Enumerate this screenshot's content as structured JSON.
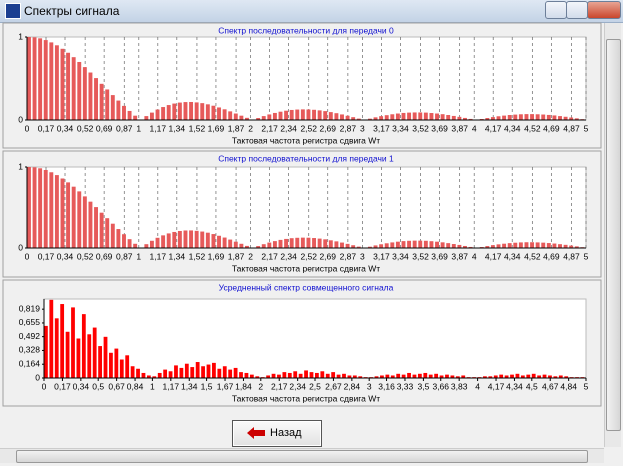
{
  "window": {
    "title": "Спектры сигнала",
    "button": "Назад"
  },
  "chart_data": [
    {
      "type": "bar",
      "title": "Спектр  последовательности для передачи 0",
      "xlabel": "Тактовая частота регистра сдвига Wт",
      "color": "#e65a5a",
      "grid": true,
      "xlim": [
        0,
        5
      ],
      "ylim": [
        0,
        1
      ],
      "yticks": [
        0,
        1
      ],
      "xticks": [
        0,
        {
          "value": 0.17,
          "label": "0,17"
        },
        {
          "value": 0.34,
          "label": "0,34"
        },
        {
          "value": 0.52,
          "label": "0,52"
        },
        {
          "value": 0.69,
          "label": "0,69"
        },
        {
          "value": 0.87,
          "label": "0,87"
        },
        1,
        {
          "value": 1.17,
          "label": "1,17"
        },
        {
          "value": 1.34,
          "label": "1,34"
        },
        {
          "value": 1.52,
          "label": "1,52"
        },
        {
          "value": 1.69,
          "label": "1,69"
        },
        {
          "value": 1.87,
          "label": "1,87"
        },
        2,
        {
          "value": 2.17,
          "label": "2,17"
        },
        {
          "value": 2.34,
          "label": "2,34"
        },
        {
          "value": 2.52,
          "label": "2,52"
        },
        {
          "value": 2.69,
          "label": "2,69"
        },
        {
          "value": 2.87,
          "label": "2,87"
        },
        3,
        {
          "value": 3.17,
          "label": "3,17"
        },
        {
          "value": 3.34,
          "label": "3,34"
        },
        {
          "value": 3.52,
          "label": "3,52"
        },
        {
          "value": 3.69,
          "label": "3,69"
        },
        {
          "value": 3.87,
          "label": "3,87"
        },
        4,
        {
          "value": 4.17,
          "label": "4,17"
        },
        {
          "value": 4.34,
          "label": "4,34"
        },
        {
          "value": 4.52,
          "label": "4,52"
        },
        {
          "value": 4.69,
          "label": "4,69"
        },
        {
          "value": 4.87,
          "label": "4,87"
        },
        5
      ],
      "x": [
        0,
        0.05,
        0.1,
        0.15,
        0.2,
        0.25,
        0.3,
        0.35,
        0.4,
        0.45,
        0.5,
        0.55,
        0.6,
        0.65,
        0.7,
        0.75,
        0.8,
        0.85,
        0.9,
        0.95,
        1,
        1.05,
        1.1,
        1.15,
        1.2,
        1.25,
        1.3,
        1.35,
        1.4,
        1.45,
        1.5,
        1.55,
        1.6,
        1.65,
        1.7,
        1.75,
        1.8,
        1.85,
        1.9,
        1.95,
        2,
        2.05,
        2.1,
        2.15,
        2.2,
        2.25,
        2.3,
        2.35,
        2.4,
        2.45,
        2.5,
        2.55,
        2.6,
        2.65,
        2.7,
        2.75,
        2.8,
        2.85,
        2.9,
        2.95,
        3,
        3.05,
        3.1,
        3.15,
        3.2,
        3.25,
        3.3,
        3.35,
        3.4,
        3.45,
        3.5,
        3.55,
        3.6,
        3.65,
        3.7,
        3.75,
        3.8,
        3.85,
        3.9,
        3.95,
        4,
        4.05,
        4.1,
        4.15,
        4.2,
        4.25,
        4.3,
        4.35,
        4.4,
        4.45,
        4.5,
        4.55,
        4.6,
        4.65,
        4.7,
        4.75,
        4.8,
        4.85,
        4.9,
        4.95
      ],
      "values": [
        1,
        0.996,
        0.984,
        0.963,
        0.935,
        0.9,
        0.858,
        0.81,
        0.757,
        0.699,
        0.637,
        0.572,
        0.505,
        0.436,
        0.368,
        0.3,
        0.234,
        0.17,
        0.109,
        0.052,
        0,
        0.047,
        0.089,
        0.126,
        0.156,
        0.18,
        0.198,
        0.21,
        0.216,
        0.217,
        0.212,
        0.203,
        0.189,
        0.172,
        0.151,
        0.129,
        0.104,
        0.078,
        0.052,
        0.026,
        0,
        0.024,
        0.047,
        0.067,
        0.085,
        0.1,
        0.112,
        0.121,
        0.126,
        0.128,
        0.127,
        0.123,
        0.116,
        0.107,
        0.095,
        0.082,
        0.067,
        0.051,
        0.034,
        0.017,
        0,
        0.016,
        0.032,
        0.046,
        0.058,
        0.069,
        0.078,
        0.085,
        0.089,
        0.091,
        0.091,
        0.089,
        0.084,
        0.078,
        0.07,
        0.06,
        0.049,
        0.038,
        0.025,
        0.013,
        0,
        0.012,
        0.024,
        0.035,
        0.045,
        0.053,
        0.06,
        0.065,
        0.069,
        0.071,
        0.071,
        0.069,
        0.066,
        0.061,
        0.055,
        0.047,
        0.039,
        0.03,
        0.02,
        0.01
      ]
    },
    {
      "type": "bar",
      "title": "Спектр последовательности для передачи 1",
      "xlabel": "Тактовая частота регистра сдвига Wт",
      "color": "#e65a5a",
      "grid": true,
      "xlim": [
        0,
        5
      ],
      "ylim": [
        0,
        1
      ],
      "yticks": [
        0,
        1
      ],
      "xticks": [
        0,
        {
          "value": 0.17,
          "label": "0,17"
        },
        {
          "value": 0.34,
          "label": "0,34"
        },
        {
          "value": 0.52,
          "label": "0,52"
        },
        {
          "value": 0.69,
          "label": "0,69"
        },
        {
          "value": 0.87,
          "label": "0,87"
        },
        1,
        {
          "value": 1.17,
          "label": "1,17"
        },
        {
          "value": 1.34,
          "label": "1,34"
        },
        {
          "value": 1.52,
          "label": "1,52"
        },
        {
          "value": 1.69,
          "label": "1,69"
        },
        {
          "value": 1.87,
          "label": "1,87"
        },
        2,
        {
          "value": 2.17,
          "label": "2,17"
        },
        {
          "value": 2.34,
          "label": "2,34"
        },
        {
          "value": 2.52,
          "label": "2,52"
        },
        {
          "value": 2.69,
          "label": "2,69"
        },
        {
          "value": 2.87,
          "label": "2,87"
        },
        3,
        {
          "value": 3.17,
          "label": "3,17"
        },
        {
          "value": 3.34,
          "label": "3,34"
        },
        {
          "value": 3.52,
          "label": "3,52"
        },
        {
          "value": 3.69,
          "label": "3,69"
        },
        {
          "value": 3.87,
          "label": "3,87"
        },
        4,
        {
          "value": 4.17,
          "label": "4,17"
        },
        {
          "value": 4.34,
          "label": "4,34"
        },
        {
          "value": 4.52,
          "label": "4,52"
        },
        {
          "value": 4.69,
          "label": "4,69"
        },
        {
          "value": 4.87,
          "label": "4,87"
        },
        5
      ],
      "x": [
        0,
        0.05,
        0.1,
        0.15,
        0.2,
        0.25,
        0.3,
        0.35,
        0.4,
        0.45,
        0.5,
        0.55,
        0.6,
        0.65,
        0.7,
        0.75,
        0.8,
        0.85,
        0.9,
        0.95,
        1,
        1.05,
        1.1,
        1.15,
        1.2,
        1.25,
        1.3,
        1.35,
        1.4,
        1.45,
        1.5,
        1.55,
        1.6,
        1.65,
        1.7,
        1.75,
        1.8,
        1.85,
        1.9,
        1.95,
        2,
        2.05,
        2.1,
        2.15,
        2.2,
        2.25,
        2.3,
        2.35,
        2.4,
        2.45,
        2.5,
        2.55,
        2.6,
        2.65,
        2.7,
        2.75,
        2.8,
        2.85,
        2.9,
        2.95,
        3,
        3.05,
        3.1,
        3.15,
        3.2,
        3.25,
        3.3,
        3.35,
        3.4,
        3.45,
        3.5,
        3.55,
        3.6,
        3.65,
        3.7,
        3.75,
        3.8,
        3.85,
        3.9,
        3.95,
        4,
        4.05,
        4.1,
        4.15,
        4.2,
        4.25,
        4.3,
        4.35,
        4.4,
        4.45,
        4.5,
        4.55,
        4.6,
        4.65,
        4.7,
        4.75,
        4.8,
        4.85,
        4.9,
        4.95
      ],
      "values": [
        1,
        0.996,
        0.984,
        0.963,
        0.935,
        0.9,
        0.858,
        0.81,
        0.757,
        0.699,
        0.637,
        0.572,
        0.505,
        0.436,
        0.368,
        0.3,
        0.234,
        0.17,
        0.109,
        0.052,
        0,
        0.047,
        0.089,
        0.126,
        0.156,
        0.18,
        0.198,
        0.21,
        0.216,
        0.217,
        0.212,
        0.203,
        0.189,
        0.172,
        0.151,
        0.129,
        0.104,
        0.078,
        0.052,
        0.026,
        0,
        0.024,
        0.047,
        0.067,
        0.085,
        0.1,
        0.112,
        0.121,
        0.126,
        0.128,
        0.127,
        0.123,
        0.116,
        0.107,
        0.095,
        0.082,
        0.067,
        0.051,
        0.034,
        0.017,
        0,
        0.016,
        0.032,
        0.046,
        0.058,
        0.069,
        0.078,
        0.085,
        0.089,
        0.091,
        0.091,
        0.089,
        0.084,
        0.078,
        0.07,
        0.06,
        0.049,
        0.038,
        0.025,
        0.013,
        0,
        0.012,
        0.024,
        0.035,
        0.045,
        0.053,
        0.06,
        0.065,
        0.069,
        0.071,
        0.071,
        0.069,
        0.066,
        0.061,
        0.055,
        0.047,
        0.039,
        0.03,
        0.02,
        0.01
      ]
    },
    {
      "type": "bar",
      "title": "Усредненный спектр совмещенного сигнала",
      "xlabel": "Тактовая частота регистра сдвига Wт",
      "color": "#ff0000",
      "grid": false,
      "xlim": [
        0,
        5
      ],
      "ylim": [
        0,
        0.94
      ],
      "yticks": [
        0,
        {
          "value": 0.164,
          "label": "0,164"
        },
        {
          "value": 0.328,
          "label": "0,328"
        },
        {
          "value": 0.492,
          "label": "0,492"
        },
        {
          "value": 0.655,
          "label": "0,655"
        },
        {
          "value": 0.819,
          "label": "0,819"
        }
      ],
      "xticks": [
        0,
        {
          "value": 0.17,
          "label": "0,17"
        },
        {
          "value": 0.34,
          "label": "0,34"
        },
        {
          "value": 0.5,
          "label": "0,5"
        },
        {
          "value": 0.67,
          "label": "0,67"
        },
        {
          "value": 0.84,
          "label": "0,84"
        },
        1,
        {
          "value": 1.17,
          "label": "1,17"
        },
        {
          "value": 1.34,
          "label": "1,34"
        },
        {
          "value": 1.5,
          "label": "1,5"
        },
        {
          "value": 1.67,
          "label": "1,67"
        },
        {
          "value": 1.84,
          "label": "1,84"
        },
        2,
        {
          "value": 2.17,
          "label": "2,17"
        },
        {
          "value": 2.34,
          "label": "2,34"
        },
        {
          "value": 2.5,
          "label": "2,5"
        },
        {
          "value": 2.67,
          "label": "2,67"
        },
        {
          "value": 2.84,
          "label": "2,84"
        },
        3,
        {
          "value": 3.16,
          "label": "3,16"
        },
        {
          "value": 3.33,
          "label": "3,33"
        },
        {
          "value": 3.5,
          "label": "3,5"
        },
        {
          "value": 3.66,
          "label": "3,66"
        },
        {
          "value": 3.83,
          "label": "3,83"
        },
        4,
        {
          "value": 4.17,
          "label": "4,17"
        },
        {
          "value": 4.34,
          "label": "4,34"
        },
        {
          "value": 4.5,
          "label": "4,5"
        },
        {
          "value": 4.67,
          "label": "4,67"
        },
        {
          "value": 4.84,
          "label": "4,84"
        },
        5
      ],
      "x": [
        0,
        0.05,
        0.1,
        0.15,
        0.2,
        0.25,
        0.3,
        0.35,
        0.4,
        0.45,
        0.5,
        0.55,
        0.6,
        0.65,
        0.7,
        0.75,
        0.8,
        0.85,
        0.9,
        0.95,
        1,
        1.05,
        1.1,
        1.15,
        1.2,
        1.25,
        1.3,
        1.35,
        1.4,
        1.45,
        1.5,
        1.55,
        1.6,
        1.65,
        1.7,
        1.75,
        1.8,
        1.85,
        1.9,
        1.95,
        2,
        2.05,
        2.1,
        2.15,
        2.2,
        2.25,
        2.3,
        2.35,
        2.4,
        2.45,
        2.5,
        2.55,
        2.6,
        2.65,
        2.7,
        2.75,
        2.8,
        2.85,
        2.9,
        2.95,
        3,
        3.05,
        3.1,
        3.15,
        3.2,
        3.25,
        3.3,
        3.35,
        3.4,
        3.45,
        3.5,
        3.55,
        3.6,
        3.65,
        3.7,
        3.75,
        3.8,
        3.85,
        3.9,
        3.95,
        4,
        4.05,
        4.1,
        4.15,
        4.2,
        4.25,
        4.3,
        4.35,
        4.4,
        4.45,
        4.5,
        4.55,
        4.6,
        4.65,
        4.7,
        4.75,
        4.8,
        4.85,
        4.9,
        4.95
      ],
      "values": [
        0.62,
        0.93,
        0.71,
        0.88,
        0.55,
        0.84,
        0.47,
        0.76,
        0.52,
        0.6,
        0.38,
        0.49,
        0.3,
        0.35,
        0.22,
        0.27,
        0.14,
        0.11,
        0.06,
        0.03,
        0.02,
        0.06,
        0.1,
        0.08,
        0.15,
        0.12,
        0.17,
        0.13,
        0.19,
        0.14,
        0.16,
        0.18,
        0.11,
        0.14,
        0.1,
        0.12,
        0.07,
        0.06,
        0.04,
        0.02,
        0.01,
        0.03,
        0.05,
        0.04,
        0.07,
        0.06,
        0.08,
        0.05,
        0.09,
        0.07,
        0.06,
        0.08,
        0.05,
        0.07,
        0.04,
        0.05,
        0.03,
        0.03,
        0.02,
        0.01,
        0.01,
        0.02,
        0.03,
        0.04,
        0.03,
        0.05,
        0.04,
        0.06,
        0.04,
        0.05,
        0.06,
        0.04,
        0.05,
        0.03,
        0.04,
        0.03,
        0.02,
        0.03,
        0.01,
        0.01,
        0.01,
        0.02,
        0.02,
        0.03,
        0.04,
        0.03,
        0.04,
        0.05,
        0.03,
        0.04,
        0.05,
        0.03,
        0.04,
        0.03,
        0.02,
        0.03,
        0.02,
        0.01,
        0.01,
        0.01
      ]
    }
  ]
}
